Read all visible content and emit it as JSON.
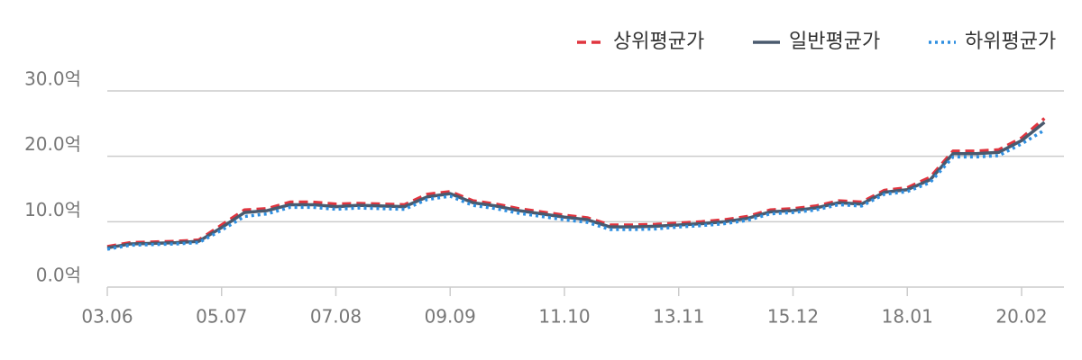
{
  "chart_data": {
    "type": "line",
    "categories": [
      "03.06",
      null,
      null,
      null,
      null,
      "05.07",
      null,
      null,
      null,
      null,
      "07.08",
      null,
      null,
      null,
      null,
      "09.09",
      null,
      null,
      null,
      null,
      "11.10",
      null,
      null,
      null,
      null,
      "13.11",
      null,
      null,
      null,
      null,
      "15.12",
      null,
      null,
      null,
      null,
      "18.01",
      null,
      null,
      null,
      null,
      "20.02",
      null
    ],
    "series": [
      {
        "name": "상위평균가",
        "color": "#e0353f",
        "style": "dashed",
        "values": [
          6.2,
          6.8,
          6.9,
          7.0,
          7.2,
          9.5,
          11.8,
          12.0,
          13.0,
          13.0,
          12.7,
          12.8,
          12.7,
          12.6,
          14.2,
          14.6,
          13.2,
          12.7,
          12.0,
          11.5,
          11.0,
          10.6,
          9.5,
          9.5,
          9.6,
          9.8,
          10.0,
          10.3,
          10.8,
          11.8,
          12.0,
          12.4,
          13.2,
          13.0,
          14.8,
          15.2,
          16.8,
          20.8,
          20.8,
          21.0,
          22.8,
          25.8
        ]
      },
      {
        "name": "일반평균가",
        "color": "#4a5a6e",
        "style": "solid",
        "values": [
          6.0,
          6.6,
          6.7,
          6.8,
          7.0,
          9.1,
          11.4,
          11.7,
          12.6,
          12.6,
          12.3,
          12.5,
          12.4,
          12.3,
          13.8,
          14.3,
          12.9,
          12.4,
          11.7,
          11.2,
          10.7,
          10.3,
          9.2,
          9.2,
          9.3,
          9.5,
          9.7,
          10.0,
          10.5,
          11.5,
          11.7,
          12.1,
          12.9,
          12.7,
          14.5,
          14.9,
          16.4,
          20.4,
          20.4,
          20.6,
          22.4,
          25.2
        ]
      },
      {
        "name": "하위평균가",
        "color": "#2f8fe0",
        "style": "dotted",
        "values": [
          5.8,
          6.4,
          6.5,
          6.6,
          6.8,
          8.7,
          10.8,
          11.2,
          12.2,
          12.2,
          11.9,
          12.1,
          12.0,
          11.9,
          13.4,
          13.9,
          12.5,
          12.0,
          11.3,
          10.8,
          10.3,
          9.9,
          8.8,
          8.8,
          8.9,
          9.2,
          9.4,
          9.7,
          10.2,
          11.2,
          11.4,
          11.8,
          12.6,
          12.4,
          14.2,
          14.6,
          16.0,
          19.9,
          19.9,
          20.1,
          21.9,
          24.0
        ]
      }
    ],
    "ylim": [
      0,
      30
    ],
    "yticks": [
      {
        "value": 0,
        "label": "0.0억"
      },
      {
        "value": 10,
        "label": "10.0억"
      },
      {
        "value": 20,
        "label": "20.0억"
      },
      {
        "value": 30,
        "label": "30.0억"
      }
    ],
    "grid": true,
    "legend": "top-right"
  }
}
